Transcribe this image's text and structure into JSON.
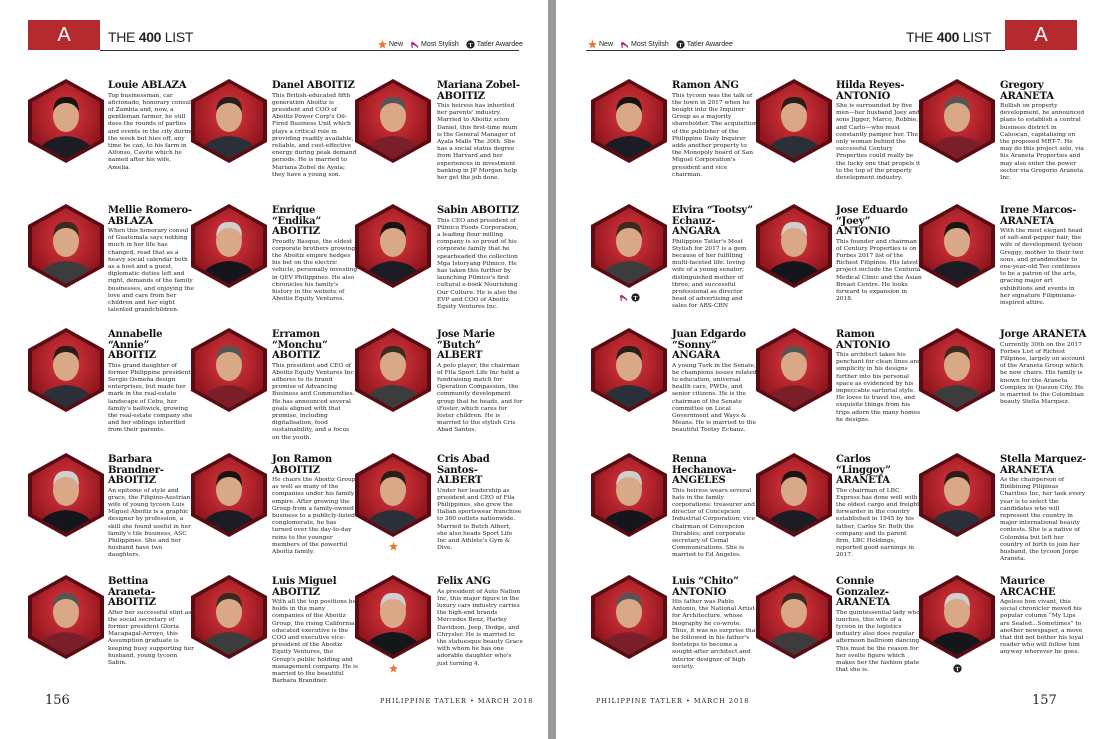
{
  "pages": [
    {
      "letter": "A",
      "header_title": {
        "pre": "THE",
        "num": "400",
        "post": "LIST"
      },
      "legend": [
        {
          "key": "new",
          "label": "New"
        },
        {
          "key": "stylish",
          "label": "Most Stylish"
        },
        {
          "key": "awardee",
          "label": "Tatler Awardee"
        }
      ],
      "entries": [
        {
          "given": "Louie",
          "surname": "ABLAZA",
          "bio": "Top businessman, car aficionado, honorary consul of Zambia and, now, a gentleman farmer, he still does the rounds of parties and events in the city during the week but hies off, any time he can, to his farm in Alfonso, Cavite which he named after his wife, Amelia."
        },
        {
          "given": "Danel",
          "surname": "ABOITIZ",
          "bio": "This British-educated fifth generation Aboitiz is president and COO of Aboitiz Power Corp's Oil-Fired Business Unit which plays a critical role in providing readily available, reliable, and cost-effective energy during peak demand periods. He is married to Mariana Zobel de Ayala; they have a young son."
        },
        {
          "given": "Mariana Zobel-",
          "surname": "ABOITIZ",
          "bio": "This heiress has inherited her parents' industry. Married to Aboitiz scion Daniel, this first-time mum is the General Manager of Ayala Malls The 30th. She has a social status degree from Harvard and her experiences in investment banking in JP Morgan help her get the job done."
        },
        {
          "given": "Mellie Romero-",
          "surname": "ABLAZA",
          "bio": "When this honorary consul of Guatemala says nothing much in her life has changed, read that as a heavy social calendar both as a host and a guest, diplomatic duties left and right, demands of the family businesses, and enjoying the love and care from her children and her eight talented grandchildren."
        },
        {
          "given": "Enrique “Endika”",
          "surname": "ABOITIZ",
          "bio": "Proudly Basque, the eldest corporate brothers growing the Aboitiz empire hedges his bet on the electric vehicle, personally investing in QEV Philippines. He also chronicles his family's history in the website of Aboitiz Equity Ventures."
        },
        {
          "given": "Sabin",
          "surname": "ABOITIZ",
          "bio": "This CEO and president of Pilmico Foods Corporation, a leading flour milling company is so proud of his corporate family that he spearheaded the collection Mga Istoryang Pilmico. He has taken this further by launching Pilmico's first cultural e-book Nourishing Our Culture. He is also the EVP and COO of Aboitiz Equity Ventures Inc."
        },
        {
          "given": "Annabelle “Annie”",
          "surname": "ABOITIZ",
          "bio": "This grand daughter of former Philippine president Sergio Osmeña design enterprises, but made her mark in the real-estate landscape of Cebu, her family's bailiwick, growing the real-estate company she and her siblings inherited from their parents."
        },
        {
          "given": "Erramon “Monchu”",
          "surname": "ABOITIZ",
          "bio": "This president and CEO of Aboitiz Equity Ventures Inc adheres to its brand promise of Advancing Business and Communities. He has announced several goals aligned with that promise, including digitalisation, food sustainability, and a focus on the youth."
        },
        {
          "given": "Jose Marie “Butch”",
          "surname": "ALBERT",
          "bio": "A polo player, the chairman of Fila Sport Life Inc held a fundraising match for Operation Compassion, the community development group that he heads, and for iFoster, which cares for foster children. He is married to the stylish Cris Abad Santos."
        },
        {
          "given": "Barbara Brandner-",
          "surname": "ABOITIZ",
          "bio": "An epitome of style and grace, the Filipino-Austrian wife of young tycoon Luis Miguel Aboitiz is a graphic designer by profession, a skill she found useful in her family's tile business, ASC Philippines. She and her husband have two daughters."
        },
        {
          "given": "Jon Ramon",
          "surname": "ABOITIZ",
          "bio": "He chairs the Aboitiz Group, as well as many of the companies under his family empire. After growing the Group from a family-owned business to a publicly-listed conglomerate, he has turned over the day-to-day reins to the younger members of the powerful Aboitiz family."
        },
        {
          "given": "Cris Abad Santos-",
          "surname": "ALBERT",
          "badges": [
            "new"
          ],
          "bio": "Under her leadership as president and CEO of Fila Philippines, she grew the Italian sportswear franchise to 360 outlets nationwide. Married to Butch Albert, she also heads Sport Life Inc and Athlete's Gym & Dive."
        },
        {
          "given": "Bettina Araneta-",
          "surname": "ABOITIZ",
          "bio": "After her successful stint as the social secretary of former president Gloria Macapagal-Arroyo, this Assumption graduate is keeping busy supporting her husband, young tycoon Sabin."
        },
        {
          "given": "Luis Miguel",
          "surname": "ABOITIZ",
          "bio": "With all the top positions he holds in the many companies of the Aboitiz Group, the rising California-educated executive is the COO and executive vice-president of the Aboitiz Equity Ventures, the Group's public holding and management company. He is married to the beautiful Barbara Brandner."
        },
        {
          "given": "Felix",
          "surname": "ANG",
          "badges": [
            "new"
          ],
          "bio": "As president of Auto Nation Inc, this major figure in the luxury cars industry carries the high-end brands Mercedes Benz, Harley Davidson, Jeep, Dodge, and Chrysler. He is married to the statuesque beauty Grace with whom he has one adorable daughter who's just turning 4."
        }
      ],
      "folio": "156",
      "footer": "PHILIPPINE TATLER • MARCH 2018"
    },
    {
      "letter": "A",
      "header_title": {
        "pre": "THE",
        "num": "400",
        "post": "LIST"
      },
      "legend": [
        {
          "key": "new",
          "label": "New"
        },
        {
          "key": "stylish",
          "label": "Most Stylish"
        },
        {
          "key": "awardee",
          "label": "Tatler Awardee"
        }
      ],
      "entries": [
        {
          "given": "Ramon",
          "surname": "ANG",
          "bio": "This tycoon was the talk of the town in 2017 when he bought into the Inquirer Group as a majority shareholder. The acquisition of the publisher of the Philippine Daily Inquirer adds another property to the Monopoly board of San Miguel Corporation's president and vice chairman."
        },
        {
          "given": "Hilda Reyes-",
          "surname": "ANTONIO",
          "bio": "She is surrounded by five men—her husband Joey and sons Jigger, Marco, Robbie, and Carlo—who must constantly pamper her. The only woman behind the successful Century Properties could really be the lucky one that propels it to the top of the property development industry."
        },
        {
          "given": "Gregory",
          "surname": "ARANETA",
          "bio": "Bullish on property development, he announced plans to establish a central business district in Caloocan, capitalising on the proposed MRT-7. He may do this project solo, via his Araneta Properties and may also enter the power sector via Gregorio Araneta Inc."
        },
        {
          "given": "Elvira “Tootsy” Echauz-",
          "surname": "ANGARA",
          "badges": [
            "stylish",
            "awardee"
          ],
          "bio": "Philippine Tatler's Most Stylish for 2017 is a gem because of her fulfilling multi-faceted life: loving wife of a young senator; distinguished mother of three; and successful professional as director head of advertising and sales for ABS-CBN"
        },
        {
          "given": "Jose Eduardo “Joey”",
          "surname": "ANTONIO",
          "bio": "This founder and chairman of Century Properties is on Forbes 2017 list of the Richest Filipinos. His latest project include the Centuria Medical Clinic and the Asian Breast Centre. He looks forward to expansion in 2018."
        },
        {
          "given": "Irene Marcos-",
          "surname": "ARANETA",
          "bio": "With the most elegant head of salt-and-pepper hair, the wife of development tycoon Greggy, mother to their two sons, and grandmother to one-year-old Teo continues to be a patron of the arts, gracing major art exhibitions and events in her signature Filipiniana-inspired attire."
        },
        {
          "given": "Juan Edgardo “Sonny”",
          "surname": "ANGARA",
          "bio": "A young Turk in the Senate, he champions issues related to education, universal health care, PWDs, and senior citizens. He is the chairman of the Senate committee on Local Government and Ways & Means. He is married to the beautiful Tootsy Echauz."
        },
        {
          "given": "Ramon",
          "surname": "ANTONIO",
          "bio": "This architect takes his penchant for clean lines and simplicity in his designs further into his personal space as evidenced by his impeccable sartorial style. He loves to travel too, and exquisite things from his trips adorn the many homes he designs."
        },
        {
          "given": "Jorge",
          "surname": "ARANETA",
          "bio": "Currently 30th on the 2017 Forbes List of Richest Filipinos, largely on account of the Araneta Group which he now chairs. His family is known for the Araneta Complex in Quezon City. He is married to the Colombian beauty Stella Marquez."
        },
        {
          "given": "Renna Hechanova-",
          "surname": "ANGELES",
          "bio": "This heiress wears several hats in the family corporations: treasurer and director of Concepcion Industrial Corporation; vice chairman of Concepcion Durables; and corporate secretary of Cemal Communications. She is married to Ed Angeles."
        },
        {
          "given": "Carlos “Linggoy”",
          "surname": "ARANETA",
          "bio": "The chairman of LBC Express has done well with the oldest cargo and freight forwarder in the country established in 1945 by his father, Carlos Sr. Both the company and its parent firm, LBC Holdings, reported good earnings in 2017."
        },
        {
          "given": "Stella Marquez-",
          "surname": "ARANETA",
          "bio": "As the chairperson of Binibining Pilipinas Charities Inc, her task every year is to select the candidates who will represent the country in major international beauty contests. She is a native of Colombia but left her country of birth to join her husband, the tycoon Jorge Araneta."
        },
        {
          "given": "Luis “Chito”",
          "surname": "ANTONIO",
          "bio": "His father was Pablo Antonio, the National Artist for Architecture, whose biography he co-wrote. Thus, it was no surprise that he followed in his father's footsteps to become a sought-after architect and interior designer of high society."
        },
        {
          "given": "Connie Gonzalez-",
          "surname": "ARANETA",
          "bio": "The quintessential lady who lunches, this wife of a tycoon in the logistics industry also does regular afternoon ballroom dancing. This must be the reason for her svelte figure which makes her the fashion plate that she is."
        },
        {
          "given": "Maurice",
          "surname": "ARCACHE",
          "badges": [
            "awardee"
          ],
          "bio": "Ageless bon vivant, this social chronicler moved his popular column “My Lips are Sealed...Sometimes” to another newspaper, a move that did not bother his loyal reader who will follow him anyway wherever he goes."
        }
      ],
      "folio": "157",
      "footer": "PHILIPPINE TATLER • MARCH 2018"
    }
  ]
}
